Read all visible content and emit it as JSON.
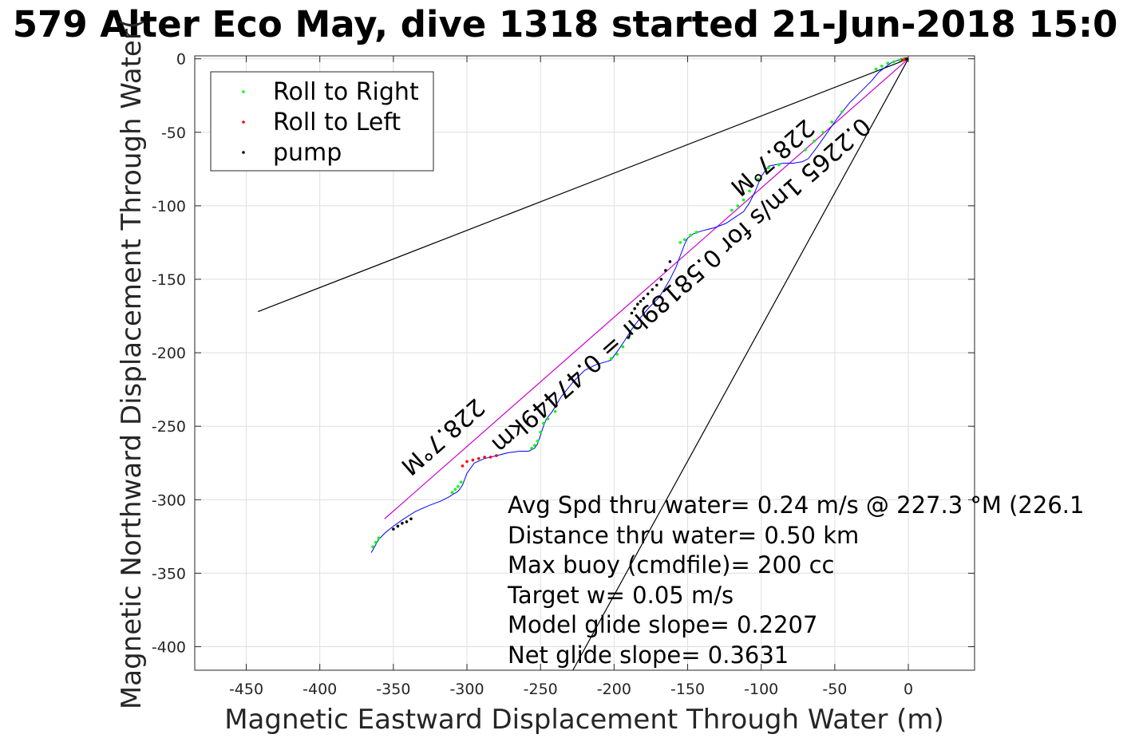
{
  "chart_data": {
    "type": "line",
    "title": "579 Alter Eco May, dive 1318 started 21-Jun-2018 15:0",
    "xlabel": "Magnetic Eastward Displacement Through Water (m)",
    "ylabel": "Magnetic Northward Displacement Through Water(",
    "xlim": [
      -485,
      45
    ],
    "ylim": [
      -416,
      2
    ],
    "x_ticks": [
      -450,
      -400,
      -350,
      -300,
      -250,
      -200,
      -150,
      -100,
      -50,
      0
    ],
    "y_ticks": [
      0,
      -50,
      -100,
      -150,
      -200,
      -250,
      -300,
      -350,
      -400
    ],
    "x_tick_labels": [
      "-450",
      "-400",
      "-350",
      "-300",
      "-250",
      "-200",
      "-150",
      "-100",
      "-50",
      "0"
    ],
    "y_tick_labels": [
      "0",
      "-50",
      "-100",
      "-150",
      "-200",
      "-250",
      "-300",
      "-350",
      "-400"
    ],
    "grid": true,
    "legend": {
      "placement": "top-left",
      "entries": [
        {
          "label": "Roll to Right",
          "color": "#00ff00"
        },
        {
          "label": "Roll to Left",
          "color": "#ff0000"
        },
        {
          "label": "pump",
          "color": "#000000"
        }
      ]
    },
    "track": {
      "color": "#0000ff",
      "x": [
        0,
        -5,
        -12,
        -20,
        -25,
        -32,
        -40,
        -48,
        -55,
        -62,
        -68,
        -72,
        -78,
        -85,
        -95,
        -100,
        -104,
        -108,
        -112,
        -118,
        -124,
        -132,
        -140,
        -146,
        -150,
        -152,
        -155,
        -158,
        -162,
        -166,
        -170,
        -176,
        -182,
        -188,
        -193,
        -197,
        -200,
        -202,
        -205,
        -212,
        -220,
        -228,
        -236,
        -242,
        -246,
        -248,
        -250,
        -252,
        -254,
        -258,
        -264,
        -272,
        -280,
        -288,
        -295,
        -300,
        -303,
        -305,
        -307,
        -309,
        -312,
        -318,
        -326,
        -335,
        -343,
        -350,
        -355,
        -360,
        -365
      ],
      "y": [
        0,
        0,
        -3,
        -9,
        -15,
        -22,
        -30,
        -40,
        -50,
        -60,
        -68,
        -70,
        -71,
        -71,
        -73,
        -80,
        -90,
        -98,
        -104,
        -108,
        -112,
        -115,
        -117,
        -119,
        -122,
        -126,
        -134,
        -142,
        -150,
        -157,
        -163,
        -169,
        -176,
        -184,
        -192,
        -198,
        -202,
        -205,
        -206,
        -208,
        -212,
        -220,
        -230,
        -240,
        -245,
        -250,
        -256,
        -262,
        -265,
        -267,
        -267,
        -268,
        -270,
        -272,
        -275,
        -282,
        -290,
        -293,
        -295,
        -296,
        -298,
        -301,
        -304,
        -308,
        -313,
        -318,
        -322,
        -327,
        -336
      ]
    },
    "roll_right_points": {
      "x": [
        -3,
        -6,
        -10,
        -14,
        -18,
        -22,
        -45,
        -52,
        -58,
        -64,
        -70,
        -88,
        -95,
        -102,
        -108,
        -112,
        -116,
        -120,
        -144,
        -148,
        -152,
        -155,
        -186,
        -190,
        -194,
        -198,
        -202,
        -240,
        -245,
        -248,
        -250,
        -252,
        -254,
        -256,
        -304,
        -306,
        -308,
        -310,
        -360,
        -362,
        -364
      ],
      "y": [
        0,
        -1,
        -2,
        -3,
        -5,
        -7,
        -36,
        -43,
        -50,
        -56,
        -62,
        -72,
        -74,
        -82,
        -90,
        -96,
        -100,
        -103,
        -118,
        -120,
        -123,
        -125,
        -183,
        -190,
        -196,
        -201,
        -204,
        -240,
        -245,
        -248,
        -254,
        -260,
        -263,
        -265,
        -288,
        -291,
        -293,
        -295,
        -326,
        -329,
        -332
      ]
    },
    "roll_left_points": {
      "x": [
        -2,
        -4,
        -280,
        -284,
        -288,
        -292,
        -296,
        -300,
        -303
      ],
      "y": [
        0,
        -1,
        -270,
        -271,
        -271,
        -272,
        -273,
        -274,
        -277
      ]
    },
    "pump_points": {
      "x": [
        -1,
        -162,
        -165,
        -168,
        -171,
        -174,
        -177,
        -180,
        -182,
        -184,
        -186,
        -188,
        -338,
        -341,
        -344,
        -347,
        -350
      ],
      "y": [
        0,
        -138,
        -144,
        -150,
        -154,
        -157,
        -160,
        -163,
        -165,
        -167,
        -170,
        -173,
        -313,
        -315,
        -316,
        -318,
        -320
      ]
    },
    "reference_lines": [
      {
        "name": "mean-heading",
        "color": "#cc00cc",
        "x": [
          0,
          -356
        ],
        "y": [
          0,
          -313
        ]
      },
      {
        "name": "upper-bound",
        "color": "#000000",
        "x": [
          0,
          -442
        ],
        "y": [
          0,
          -172
        ]
      },
      {
        "name": "lower-bound",
        "color": "#000000",
        "x": [
          0,
          -228
        ],
        "y": [
          0,
          -416
        ]
      }
    ],
    "diagonal_labels": [
      {
        "text": "0.2265 1m/s for 0.58189hr = 0.47449km",
        "at": [
          -158,
          -150
        ],
        "rotation": 138.7
      },
      {
        "text": "228.7°M",
        "at": [
          -96,
          -63
        ],
        "rotation": 138.7
      },
      {
        "text": "228.7°M",
        "at": [
          -320,
          -253
        ],
        "rotation": 138.7
      }
    ],
    "annotations": [
      "Avg Spd thru water=  0.24 m/s @ 227.3 °M (226.1",
      "Distance thru water=  0.50 km",
      "Max buoy (cmdfile)= 200 cc",
      "Target w= 0.05 m/s",
      "Model glide slope= 0.2207",
      "Net glide slope= 0.3631"
    ]
  }
}
